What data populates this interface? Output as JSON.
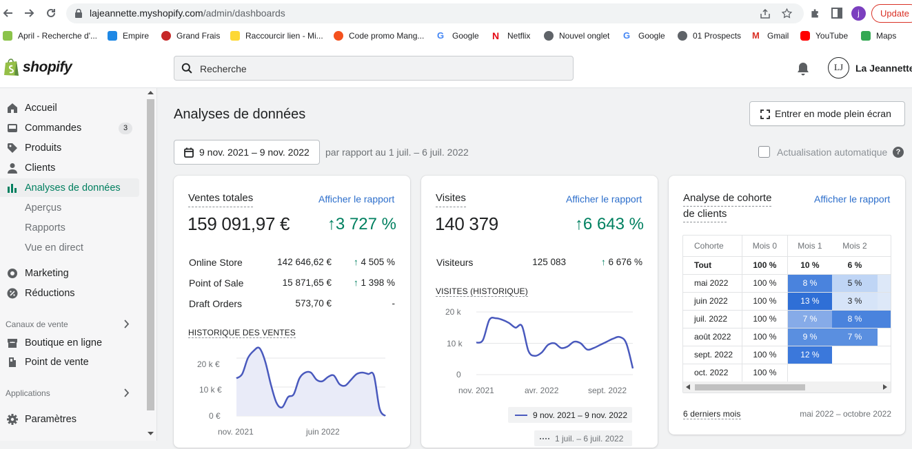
{
  "browser": {
    "url_host": "lajeannette.myshopify.com",
    "url_path": "/admin/dashboards",
    "update_label": "Update",
    "profile_initial": "j",
    "bookmarks": [
      {
        "label": "April - Recherche d'...",
        "color": "#8bc34a"
      },
      {
        "label": "Empire",
        "color": "#1e88e5"
      },
      {
        "label": "Grand Frais",
        "color": "#c62828"
      },
      {
        "label": "Raccourcir lien - Mi...",
        "color": "#fdd835"
      },
      {
        "label": "Code promo Mang...",
        "color": "#f4511e"
      },
      {
        "label": "Google",
        "color": "#4285f4"
      },
      {
        "label": "Netflix",
        "color": "#e50914"
      },
      {
        "label": "Nouvel onglet",
        "color": "#5f6368"
      },
      {
        "label": "Google",
        "color": "#4285f4"
      },
      {
        "label": "01 Prospects",
        "color": "#5f6368"
      },
      {
        "label": "Gmail",
        "color": "#d93025"
      },
      {
        "label": "YouTube",
        "color": "#ff0000"
      },
      {
        "label": "Maps",
        "color": "#34a853"
      }
    ]
  },
  "header": {
    "logo": "shopify",
    "search_placeholder": "Recherche",
    "avatar_initials": "LJ",
    "store_name": "La Jeannette"
  },
  "sidebar": {
    "items": [
      {
        "label": "Accueil",
        "icon": "home-icon"
      },
      {
        "label": "Commandes",
        "icon": "orders-icon",
        "badge": "3"
      },
      {
        "label": "Produits",
        "icon": "tag-icon"
      },
      {
        "label": "Clients",
        "icon": "person-icon"
      },
      {
        "label": "Analyses de données",
        "icon": "analytics-icon",
        "active": true
      }
    ],
    "sub_items": [
      "Aperçus",
      "Rapports",
      "Vue en direct"
    ],
    "items2": [
      {
        "label": "Marketing",
        "icon": "marketing-icon"
      },
      {
        "label": "Réductions",
        "icon": "discount-icon"
      }
    ],
    "channels_title": "Canaux de vente",
    "channels": [
      {
        "label": "Boutique en ligne",
        "icon": "store-icon"
      },
      {
        "label": "Point de vente",
        "icon": "pos-icon"
      }
    ],
    "apps_title": "Applications",
    "settings_label": "Paramètres"
  },
  "main": {
    "title": "Analyses de données",
    "fullscreen_label": "Entrer en mode plein écran",
    "date_range": "9 nov. 2021 – 9 nov. 2022",
    "compare_text": "par rapport au 1 juil. – 6 juil. 2022",
    "auto_refresh_label": "Actualisation automatique"
  },
  "sales_card": {
    "title": "Ventes totales",
    "link": "Afficher le rapport",
    "total": "159 091,97 €",
    "change": "3 727 %",
    "rows": [
      {
        "label": "Online Store",
        "value": "142 646,62 €",
        "change": "4 505 %"
      },
      {
        "label": "Point of Sale",
        "value": "15 871,65 €",
        "change": "1 398 %"
      },
      {
        "label": "Draft Orders",
        "value": "573,70 €",
        "change": "-"
      }
    ],
    "chart_title": "HISTORIQUE DES VENTES",
    "y_ticks": [
      "20 k €",
      "10 k €",
      "0 €"
    ],
    "x_ticks": [
      "nov. 2021",
      "juin 2022"
    ]
  },
  "visits_card": {
    "title": "Visites",
    "link": "Afficher le rapport",
    "total": "140 379",
    "change": "6 643 %",
    "row": {
      "label": "Visiteurs",
      "value": "125 083",
      "change": "6 676 %"
    },
    "chart_title": "VISITES (HISTORIQUE)",
    "y_ticks": [
      "20 k",
      "10 k",
      "0"
    ],
    "x_ticks": [
      "nov. 2021",
      "avr. 2022",
      "sept. 2022"
    ],
    "legend_current": "9 nov. 2021 – 9 nov. 2022",
    "legend_previous": "1 juil. – 6 juil. 2022"
  },
  "cohort_card": {
    "title_line1": "Analyse de cohorte",
    "title_line2": "de clients",
    "link": "Afficher le rapport",
    "headers": [
      "Cohorte",
      "Mois 0",
      "Mois 1",
      "Mois 2"
    ],
    "rows": [
      {
        "label": "Tout",
        "m0": "100 %",
        "m1": "10 %",
        "m2": "6 %"
      },
      {
        "label": "mai 2022",
        "m0": "100 %",
        "m1": "8 %",
        "m2": "5 %"
      },
      {
        "label": "juin 2022",
        "m0": "100 %",
        "m1": "13 %",
        "m2": "3 %"
      },
      {
        "label": "juil. 2022",
        "m0": "100 %",
        "m1": "7 %",
        "m2": "8 %"
      },
      {
        "label": "août 2022",
        "m0": "100 %",
        "m1": "9 %",
        "m2": "7 %"
      },
      {
        "label": "sept. 2022",
        "m0": "100 %",
        "m1": "12 %",
        "m2": ""
      },
      {
        "label": "oct. 2022",
        "m0": "100 %",
        "m1": "",
        "m2": ""
      }
    ],
    "footer_left": "6 derniers mois",
    "footer_right": "mai 2022 – octobre 2022"
  },
  "chart_data": [
    {
      "type": "line",
      "title": "HISTORIQUE DES VENTES",
      "x_tick_labels": [
        "nov. 2021",
        "juin 2022"
      ],
      "ylim": [
        0,
        25000
      ],
      "y_ticks": [
        0,
        10000,
        20000
      ],
      "series": [
        {
          "values": [
            13000,
            14500,
            20000,
            22500,
            23500,
            19000,
            11000,
            4500,
            3000,
            6500,
            7500,
            13000,
            15000,
            15000,
            12500,
            12000,
            13500,
            14000,
            11000,
            10500,
            12500,
            14500,
            15000,
            14500,
            14000,
            2500,
            0
          ]
        }
      ]
    },
    {
      "type": "line",
      "title": "VISITES (HISTORIQUE)",
      "x_tick_labels": [
        "nov. 2021",
        "avr. 2022",
        "sept. 2022"
      ],
      "ylim": [
        0,
        20000
      ],
      "y_ticks": [
        0,
        10000,
        20000
      ],
      "series": [
        {
          "name": "9 nov. 2021 – 9 nov. 2022",
          "values": [
            10200,
            11000,
            17500,
            18000,
            17500,
            16500,
            15000,
            15500,
            7500,
            6000,
            7000,
            9500,
            10000,
            8500,
            9000,
            10500,
            10000,
            8000,
            8500,
            9500,
            10500,
            11500,
            12000,
            10000,
            2000
          ]
        }
      ]
    }
  ]
}
